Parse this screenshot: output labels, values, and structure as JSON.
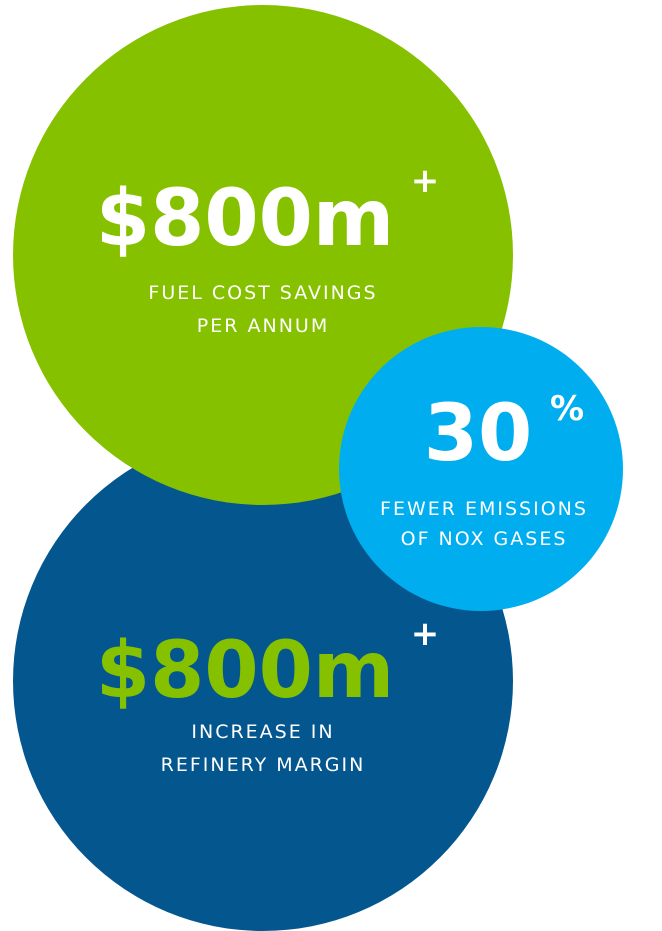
{
  "stats": [
    {
      "value": "$800m",
      "suffix": "+",
      "lines": [
        "FUEL COST SAVINGS",
        "PER ANNUM"
      ]
    },
    {
      "value": "30",
      "suffix": "%",
      "lines": [
        "FEWER EMISSIONS",
        "OF NOX GASES"
      ]
    },
    {
      "value": "$800m",
      "suffix": "+",
      "lines": [
        "INCREASE IN",
        "REFINERY MARGIN"
      ]
    }
  ]
}
